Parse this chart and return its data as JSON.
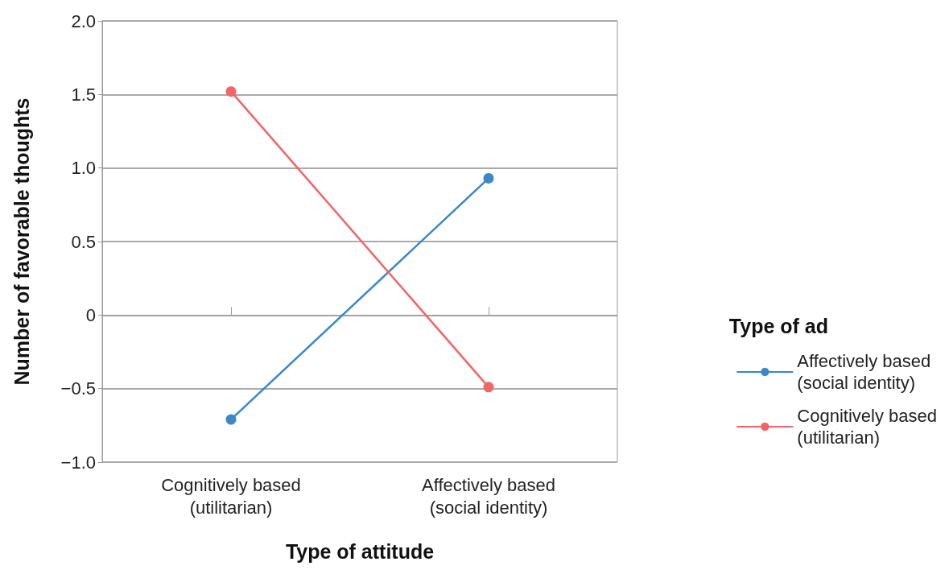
{
  "chart_data": {
    "type": "line",
    "xlabel": "Type of attitude",
    "ylabel": "Number of favorable thoughts",
    "legend_title": "Type of ad",
    "categories": [
      "Cognitively based\n(utilitarian)",
      "Affectively based\n(social identity)"
    ],
    "series": [
      {
        "name": "Affectively based\n(social identity)",
        "color": "#3a88c8",
        "values": [
          -0.71,
          0.93
        ]
      },
      {
        "name": "Cognitively based\n(utilitarian)",
        "color": "#f26466",
        "values": [
          1.52,
          -0.49
        ]
      }
    ],
    "ylim": [
      -1,
      2
    ],
    "yticks": [
      {
        "value": -1,
        "label": "−1.0"
      },
      {
        "value": -0.5,
        "label": "−0.5"
      },
      0,
      0.5,
      {
        "value": 1,
        "label": "1.0"
      },
      1.5,
      {
        "value": 2,
        "label": "2.0"
      }
    ],
    "grid": "y",
    "legend": "right",
    "marker": "circle",
    "line_style": "solid"
  }
}
